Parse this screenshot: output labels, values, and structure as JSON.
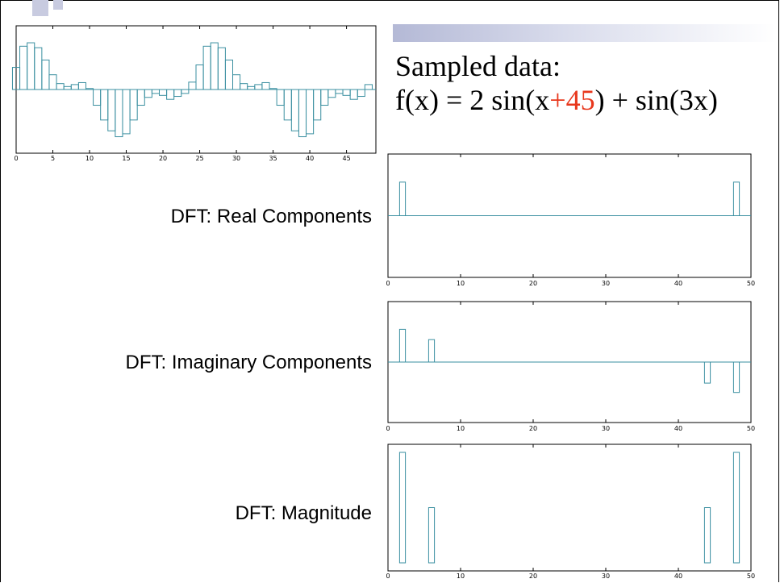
{
  "colors": {
    "bar": "#3a8fa0",
    "accent": "#e8371c"
  },
  "heading": {
    "line1": "Sampled data:",
    "formula_before": "f(x) = 2 sin(x",
    "formula_accent": "+45",
    "formula_after": ") + sin(3x)"
  },
  "labels": {
    "real": "DFT: Real Components",
    "imag": "DFT: Imaginary Components",
    "mag": "DFT: Magnitude"
  },
  "chart_data": [
    {
      "id": "sampled",
      "type": "bar",
      "title": "",
      "xlim": [
        0,
        49
      ],
      "ylim": [
        -1,
        1
      ],
      "xticks": [
        0,
        5,
        10,
        15,
        20,
        25,
        30,
        35,
        40,
        45
      ],
      "x": [
        0,
        1,
        2,
        3,
        4,
        5,
        6,
        7,
        8,
        9,
        10,
        11,
        12,
        13,
        14,
        15,
        16,
        17,
        18,
        19,
        20,
        21,
        22,
        23,
        24,
        25,
        26,
        27,
        28,
        29,
        30,
        31,
        32,
        33,
        34,
        35,
        36,
        37,
        38,
        39,
        40,
        41,
        42,
        43,
        44,
        45,
        46,
        47,
        48
      ],
      "values": [
        0.45,
        0.88,
        0.95,
        0.85,
        0.6,
        0.3,
        0.12,
        0.06,
        0.1,
        0.14,
        0.02,
        -0.32,
        -0.62,
        -0.84,
        -0.96,
        -0.9,
        -0.62,
        -0.32,
        -0.16,
        -0.08,
        -0.12,
        -0.2,
        -0.14,
        -0.08,
        0.15,
        0.5,
        0.88,
        0.95,
        0.85,
        0.6,
        0.3,
        0.12,
        0.06,
        0.1,
        0.14,
        0.02,
        -0.32,
        -0.62,
        -0.84,
        -0.96,
        -0.9,
        -0.62,
        -0.32,
        -0.16,
        -0.08,
        -0.12,
        -0.2,
        -0.14,
        0.1
      ]
    },
    {
      "id": "real",
      "type": "bar",
      "xlim": [
        0,
        50
      ],
      "ylim": [
        -1,
        1
      ],
      "xticks": [
        0,
        10,
        20,
        30,
        40,
        50
      ],
      "x": [
        2,
        48
      ],
      "values": [
        0.7,
        0.7
      ]
    },
    {
      "id": "imag",
      "type": "bar",
      "xlim": [
        0,
        50
      ],
      "ylim": [
        -1,
        1
      ],
      "xticks": [
        0,
        10,
        20,
        30,
        40,
        50
      ],
      "x": [
        2,
        6,
        44,
        48
      ],
      "values": [
        0.7,
        0.48,
        -0.45,
        -0.65
      ]
    },
    {
      "id": "mag",
      "type": "bar",
      "xlim": [
        0,
        50
      ],
      "ylim": [
        0,
        1
      ],
      "xticks": [
        0,
        10,
        20,
        30,
        40,
        50
      ],
      "x": [
        2,
        6,
        44,
        48
      ],
      "values": [
        1.0,
        0.5,
        0.5,
        1.0
      ]
    }
  ]
}
